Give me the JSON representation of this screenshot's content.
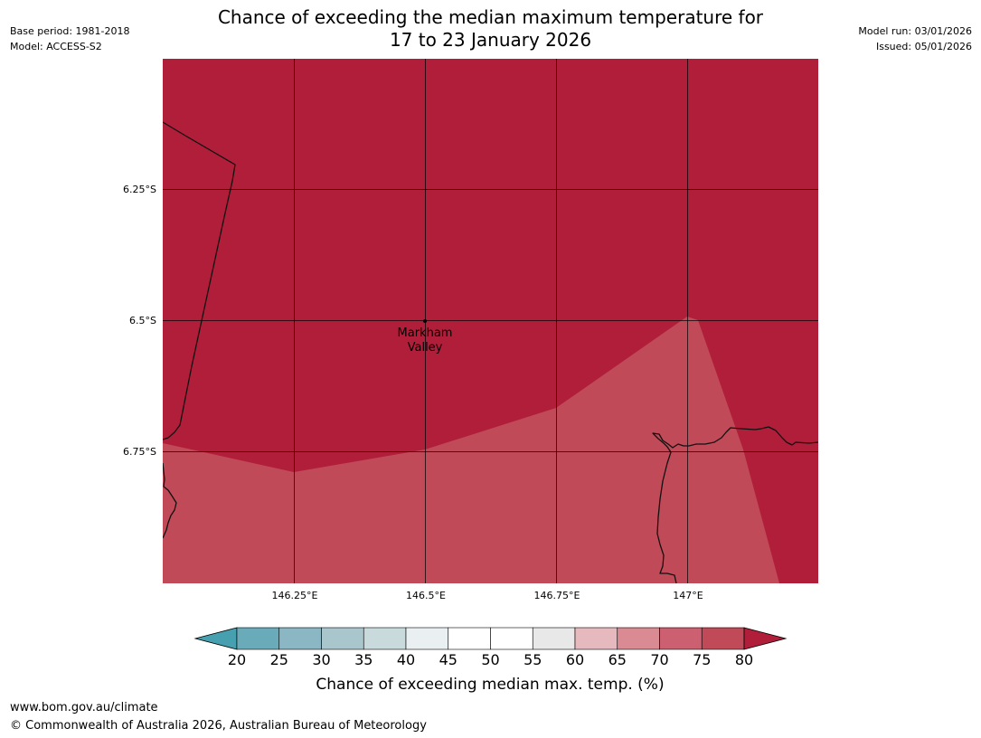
{
  "header": {
    "title_line1": "Chance of exceeding the median maximum temperature for",
    "title_line2": "17 to 23 January 2026",
    "base_period": "Base period: 1981-2018",
    "model": "Model: ACCESS-S2",
    "model_run": "Model run: 03/01/2026",
    "issued": "Issued: 05/01/2026"
  },
  "map": {
    "place_label_line1": "Markham",
    "place_label_line2": "Valley",
    "lat_labels": [
      "6.25°S",
      "6.5°S",
      "6.75°S"
    ],
    "lon_labels": [
      "146.25°E",
      "146.5°E",
      "146.75°E",
      "147°E"
    ],
    "region_colors": {
      "above_80": "#b01e3a",
      "band_75_80": "#c04a58"
    }
  },
  "colorbar": {
    "title": "Chance of exceeding median max. temp. (%)",
    "tick_labels": [
      "20",
      "25",
      "30",
      "35",
      "40",
      "45",
      "50",
      "55",
      "60",
      "65",
      "70",
      "75",
      "80"
    ],
    "below_color": "#46a0b0",
    "above_color": "#b01e3a",
    "segment_colors": [
      "#6aabb9",
      "#8ab7c3",
      "#a8c6cc",
      "#c9dadd",
      "#eaf0f2",
      "#ffffff",
      "#ffffff",
      "#e8e8e8",
      "#e5b9bd",
      "#d98a93",
      "#cc6070",
      "#c04a58"
    ]
  },
  "footer": {
    "url": "www.bom.gov.au/climate",
    "copyright": "© Commonwealth of Australia 2026, Australian Bureau of Meteorology"
  }
}
